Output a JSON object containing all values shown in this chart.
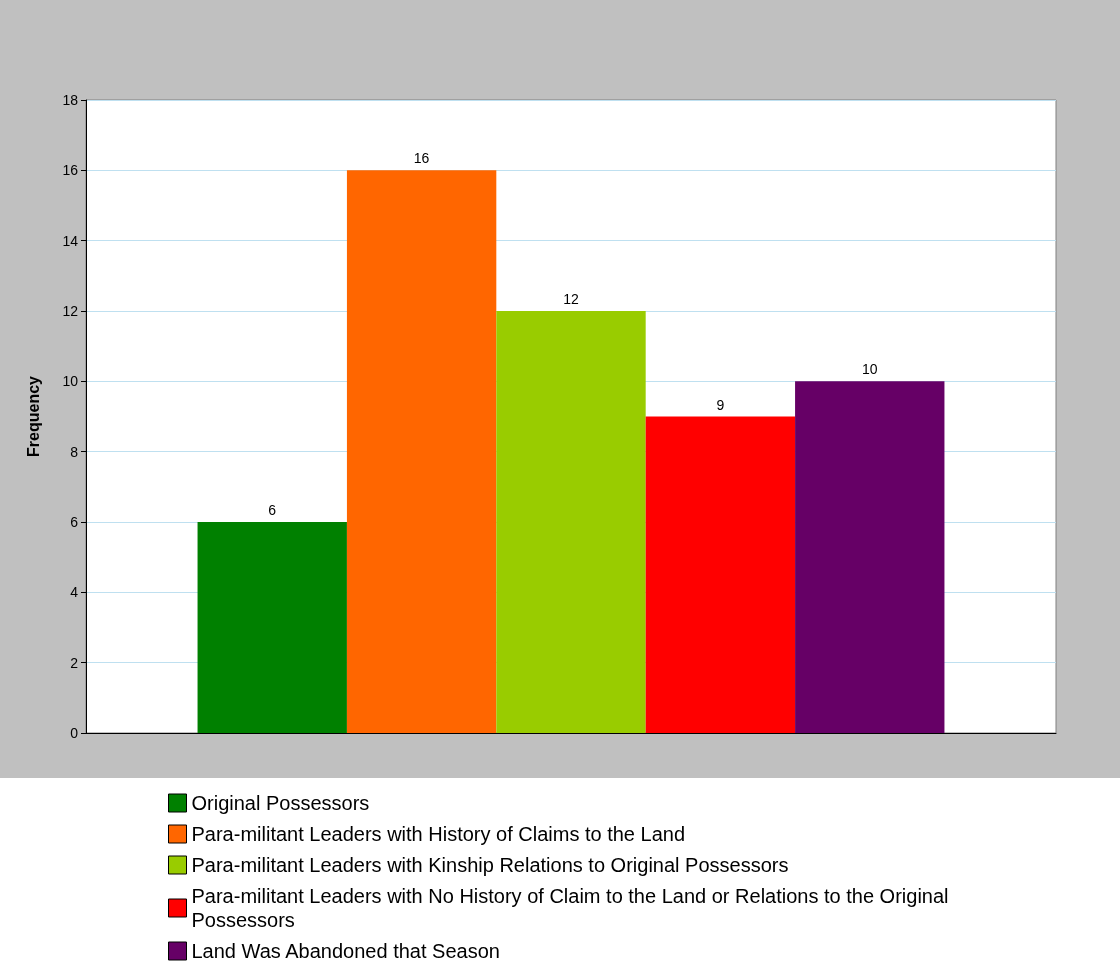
{
  "chart_data": {
    "type": "bar",
    "ylabel": "Frequency",
    "categories": [
      null
    ],
    "series": [
      {
        "name": "Original Possessors",
        "color": "#008000",
        "values": [
          6
        ]
      },
      {
        "name": "Para-militant Leaders with History of Claims to the Land",
        "color": "#ff6600",
        "values": [
          16
        ]
      },
      {
        "name": "Para-militant Leaders with Kinship Relations to Original Possessors",
        "color": "#99cc00",
        "values": [
          12
        ]
      },
      {
        "name": "Para-militant Leaders with No History of Claim to the Land or Relations to the Original Possessors",
        "color": "#ff0000",
        "values": [
          9
        ]
      },
      {
        "name": "Land Was Abandoned that Season",
        "color": "#660066",
        "values": [
          10
        ]
      }
    ],
    "ylim": [
      0,
      18
    ],
    "yticks": [
      0,
      2,
      4,
      6,
      8,
      10,
      12,
      14,
      16,
      18
    ],
    "grid": "y",
    "legend": "bottom",
    "data_labels": true
  }
}
